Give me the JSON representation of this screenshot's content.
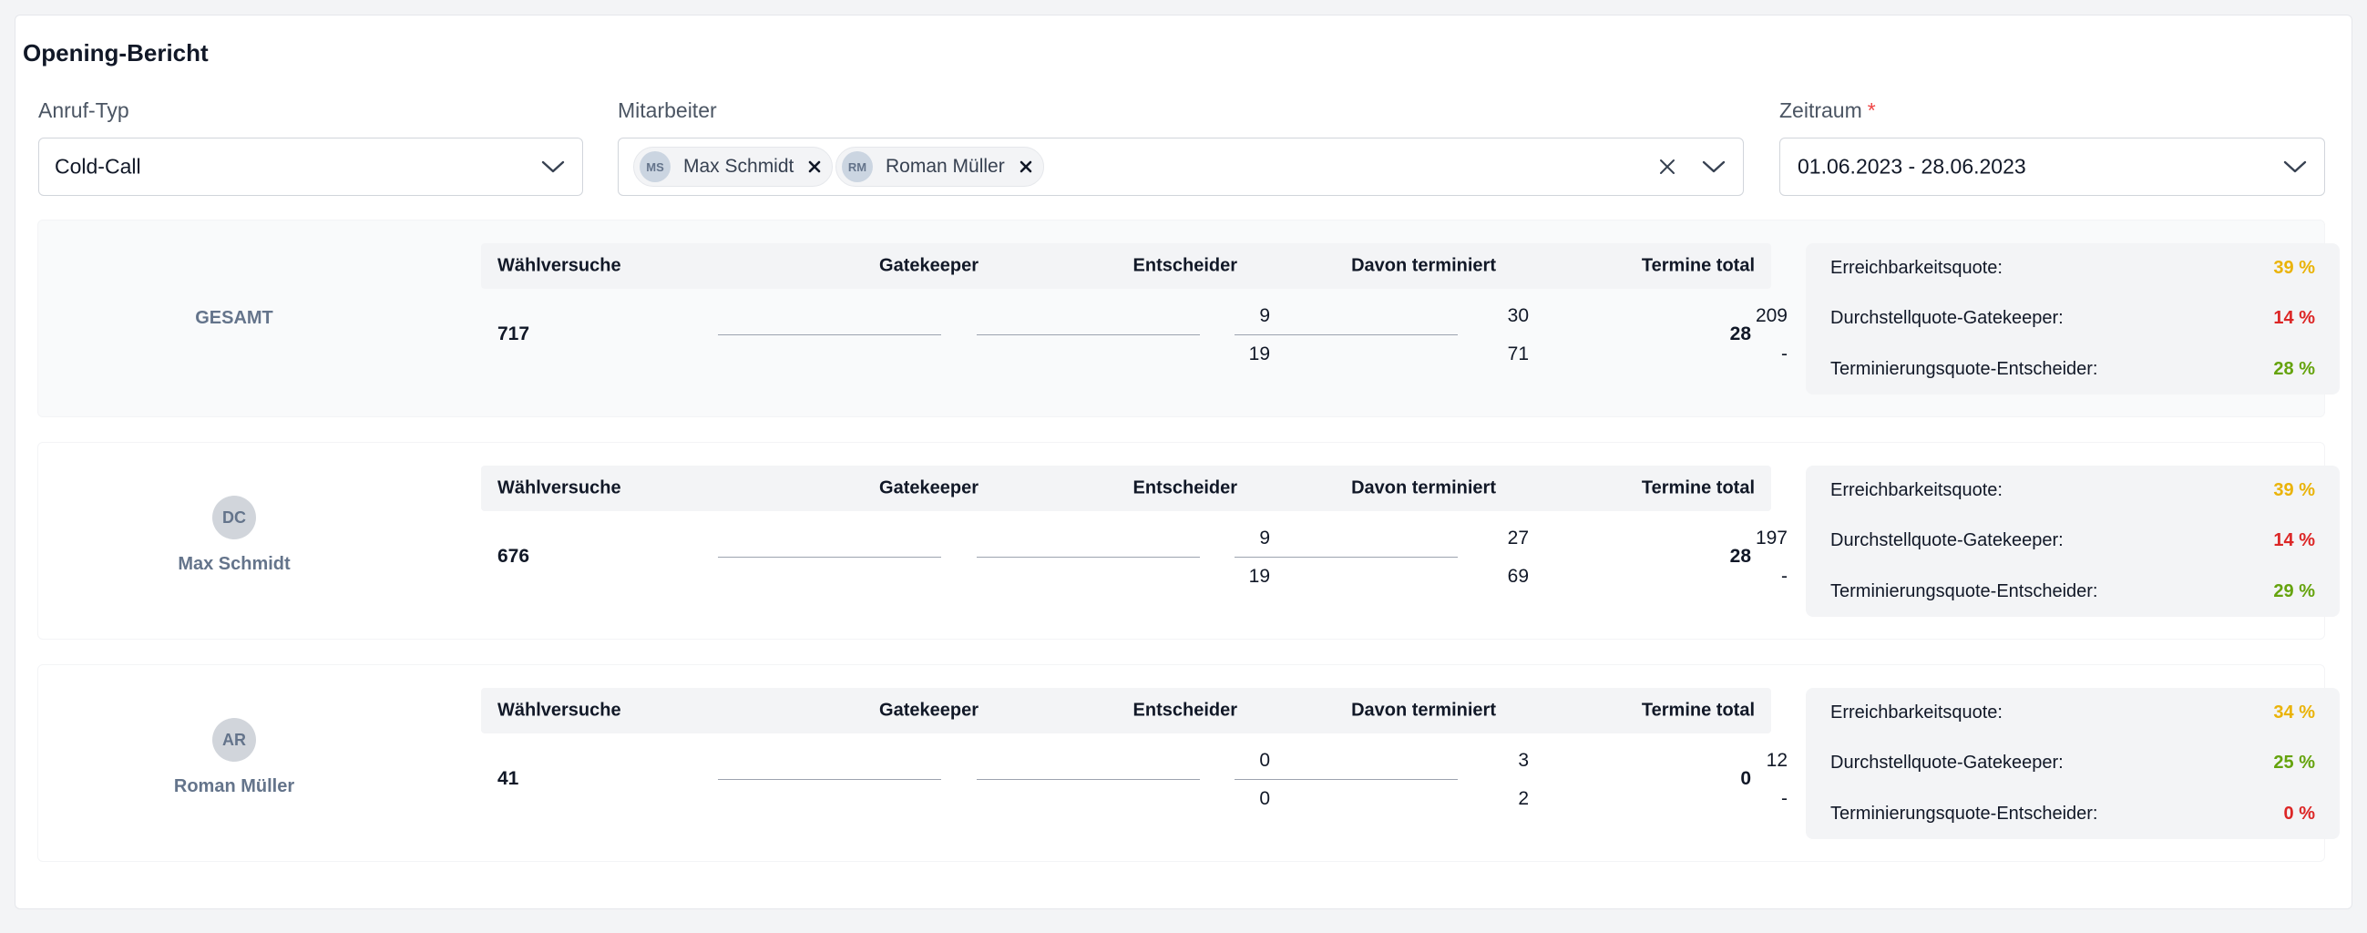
{
  "title": "Opening-Bericht",
  "filters": {
    "anruf_typ": {
      "label": "Anruf-Typ",
      "value": "Cold-Call"
    },
    "mitarbeiter": {
      "label": "Mitarbeiter",
      "chips": [
        {
          "initials": "MS",
          "name": "Max Schmidt"
        },
        {
          "initials": "RM",
          "name": "Roman Müller"
        }
      ]
    },
    "zeitraum": {
      "label": "Zeitraum",
      "required_marker": "*",
      "value": "01.06.2023 - 28.06.2023"
    }
  },
  "table_headers": {
    "waehlversuche": "Wählversuche",
    "gatekeeper": "Gatekeeper",
    "entscheider": "Entscheider",
    "davon_terminiert": "Davon terminiert",
    "termine_total": "Termine total"
  },
  "quote_labels": {
    "erreichbarkeit": "Erreichbarkeitsquote:",
    "durchstell": "Durchstellquote-Gatekeeper:",
    "terminierung": "Terminierungsquote-Entscheider:"
  },
  "colors": {
    "orange": "#eab308",
    "red": "#dc2626",
    "green": "#65a30d"
  },
  "rows": [
    {
      "name": "GESAMT",
      "avatar": "",
      "waehlversuche": "717",
      "gatekeeper": {
        "top": "209",
        "bottom": "-"
      },
      "entscheider": {
        "top": "30",
        "bottom": "71"
      },
      "davon_terminiert": {
        "top": "9",
        "bottom": "19"
      },
      "termine_total": "28",
      "quotes": {
        "erreichbarkeit": {
          "value": "39 %",
          "color": "orange"
        },
        "durchstell": {
          "value": "14 %",
          "color": "red"
        },
        "terminierung": {
          "value": "28 %",
          "color": "green"
        }
      }
    },
    {
      "name": "Max Schmidt",
      "avatar": "DC",
      "waehlversuche": "676",
      "gatekeeper": {
        "top": "197",
        "bottom": "-"
      },
      "entscheider": {
        "top": "27",
        "bottom": "69"
      },
      "davon_terminiert": {
        "top": "9",
        "bottom": "19"
      },
      "termine_total": "28",
      "quotes": {
        "erreichbarkeit": {
          "value": "39 %",
          "color": "orange"
        },
        "durchstell": {
          "value": "14 %",
          "color": "red"
        },
        "terminierung": {
          "value": "29 %",
          "color": "green"
        }
      }
    },
    {
      "name": "Roman Müller",
      "avatar": "AR",
      "waehlversuche": "41",
      "gatekeeper": {
        "top": "12",
        "bottom": "-"
      },
      "entscheider": {
        "top": "3",
        "bottom": "2"
      },
      "davon_terminiert": {
        "top": "0",
        "bottom": "0"
      },
      "termine_total": "0",
      "quotes": {
        "erreichbarkeit": {
          "value": "34 %",
          "color": "orange"
        },
        "durchstell": {
          "value": "25 %",
          "color": "green"
        },
        "terminierung": {
          "value": "0 %",
          "color": "red"
        }
      }
    }
  ]
}
